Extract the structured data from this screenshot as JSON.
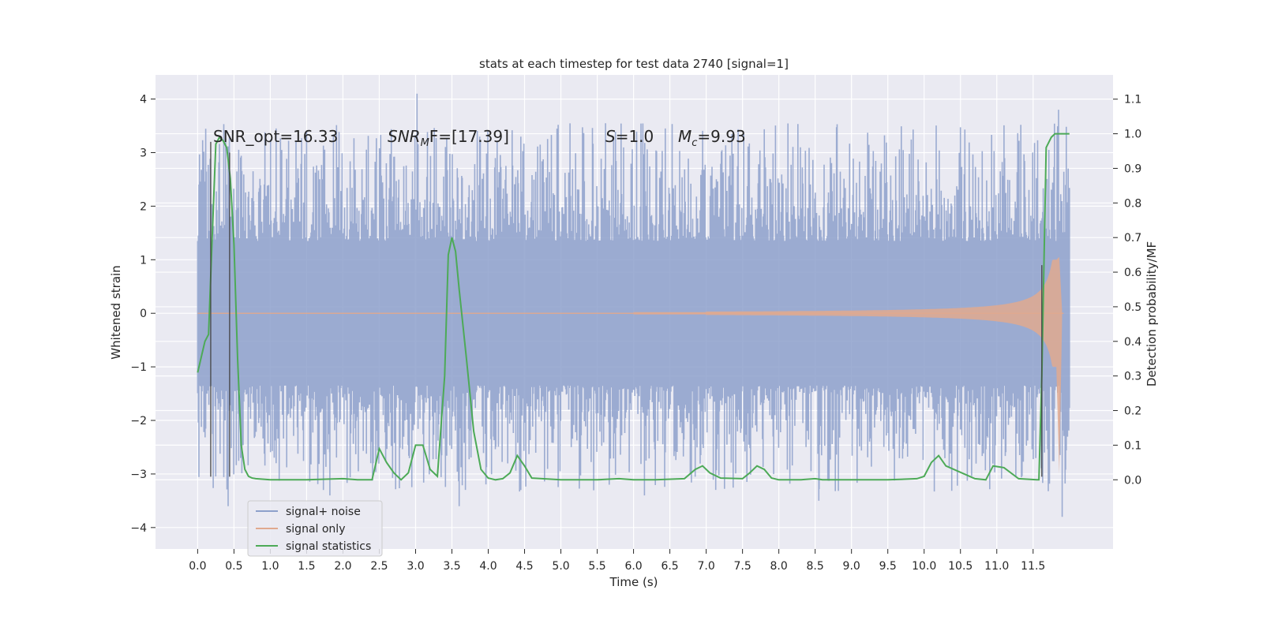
{
  "chart_data": {
    "type": "line",
    "title": "stats at each timestep for test data 2740 [signal=1]",
    "xlabel": "Time (s)",
    "ylabel": "Whitened strain",
    "ylabel_right": "Detection probability/MF",
    "xlim": [
      -0.58,
      12.6
    ],
    "ylim": [
      -4.4,
      4.45
    ],
    "ylim_right": [
      -0.2,
      1.17
    ],
    "x_ticks": [
      0.0,
      0.5,
      1.0,
      1.5,
      2.0,
      2.5,
      3.0,
      3.5,
      4.0,
      4.5,
      5.0,
      5.5,
      6.0,
      6.5,
      7.0,
      7.5,
      8.0,
      8.5,
      9.0,
      9.5,
      10.0,
      10.5,
      11.0,
      11.5
    ],
    "x_tick_labels": [
      "0.0",
      "0.5",
      "1.0",
      "1.5",
      "2.0",
      "2.5",
      "3.0",
      "3.5",
      "4.0",
      "4.5",
      "5.0",
      "5.5",
      "6.0",
      "6.5",
      "7.0",
      "7.5",
      "8.0",
      "8.5",
      "9.0",
      "9.5",
      "10.0",
      "10.5",
      "11.0",
      "11.5"
    ],
    "y_ticks": [
      -4,
      -3,
      -2,
      -1,
      0,
      1,
      2,
      3,
      4
    ],
    "y_tick_labels": [
      "−4",
      "−3",
      "−2",
      "−1",
      "0",
      "1",
      "2",
      "3",
      "4"
    ],
    "y_ticks_right": [
      0.0,
      0.1,
      0.2,
      0.3,
      0.4,
      0.5,
      0.6,
      0.7,
      0.8,
      0.9,
      1.0,
      1.1
    ],
    "y_tick_labels_right": [
      "0.0",
      "0.1",
      "0.2",
      "0.3",
      "0.4",
      "0.5",
      "0.6",
      "0.7",
      "0.8",
      "0.9",
      "1.0",
      "1.1"
    ],
    "grid": true,
    "legend_position": "lower-left",
    "annotations": {
      "snr_opt": "SNR_opt=16.33",
      "snr_mf_label": "SNR",
      "snr_mf_sub": "M",
      "snr_mf_rest": "F=[17.39]",
      "s_label": "S",
      "s_rest": "=1.0",
      "mc_label": "M",
      "mc_sub": "c",
      "mc_rest": "=9.93"
    },
    "series": [
      {
        "name": "signal+ noise",
        "color": "#8da0cb",
        "axis": "left",
        "t_range": [
          0.0,
          12.0
        ],
        "noise_envelope": {
          "core": 1.35,
          "max": 4.1,
          "min": -3.8
        },
        "peaks": [
          {
            "t": 3.02,
            "y": 4.1
          },
          {
            "t": 11.85,
            "y": 3.8
          },
          {
            "t": 11.9,
            "y": -3.8
          },
          {
            "t": 0.42,
            "y": -3.6
          },
          {
            "t": 3.6,
            "y": -3.6
          },
          {
            "t": 1.82,
            "y": -3.4
          },
          {
            "t": 6.15,
            "y": -3.4
          },
          {
            "t": 8.55,
            "y": -3.5
          }
        ]
      },
      {
        "name": "signal only",
        "color": "#e0a98f",
        "axis": "left",
        "chirp_start": 7.0,
        "chirp_end": 11.82,
        "amp_end": 1.0
      },
      {
        "name": "signal statistics",
        "color": "#4daa57",
        "axis": "right",
        "x": [
          0.0,
          0.1,
          0.15,
          0.2,
          0.25,
          0.3,
          0.35,
          0.4,
          0.45,
          0.5,
          0.55,
          0.6,
          0.65,
          0.7,
          0.75,
          0.8,
          1.0,
          1.5,
          2.0,
          2.2,
          2.4,
          2.5,
          2.6,
          2.7,
          2.8,
          2.9,
          3.0,
          3.1,
          3.2,
          3.3,
          3.4,
          3.45,
          3.5,
          3.55,
          3.6,
          3.7,
          3.8,
          3.9,
          4.0,
          4.1,
          4.2,
          4.3,
          4.4,
          4.5,
          4.6,
          5.0,
          5.3,
          5.5,
          5.8,
          6.0,
          6.3,
          6.7,
          6.85,
          6.95,
          7.05,
          7.2,
          7.5,
          7.6,
          7.7,
          7.8,
          7.9,
          8.0,
          8.3,
          8.5,
          8.6,
          9.0,
          9.5,
          9.9,
          10.0,
          10.1,
          10.2,
          10.3,
          10.7,
          10.85,
          10.95,
          11.1,
          11.3,
          11.55,
          11.58,
          11.62,
          11.68,
          11.75,
          11.8,
          11.85,
          12.0
        ],
        "y": [
          0.31,
          0.4,
          0.42,
          0.7,
          0.97,
          0.99,
          0.98,
          0.96,
          0.87,
          0.68,
          0.35,
          0.1,
          0.03,
          0.01,
          0.005,
          0.003,
          0.0,
          0.0,
          0.003,
          0.0,
          0.0,
          0.09,
          0.05,
          0.02,
          0.0,
          0.02,
          0.1,
          0.1,
          0.03,
          0.01,
          0.3,
          0.65,
          0.7,
          0.66,
          0.55,
          0.35,
          0.14,
          0.03,
          0.005,
          0.0,
          0.003,
          0.02,
          0.07,
          0.04,
          0.005,
          0.0,
          0.0,
          0.0,
          0.003,
          0.0,
          0.0,
          0.003,
          0.03,
          0.04,
          0.02,
          0.005,
          0.003,
          0.02,
          0.04,
          0.03,
          0.005,
          0.0,
          0.0,
          0.003,
          0.0,
          0.0,
          0.0,
          0.003,
          0.01,
          0.05,
          0.07,
          0.04,
          0.003,
          0.0,
          0.04,
          0.035,
          0.003,
          0.0,
          0.0,
          0.3,
          0.96,
          0.99,
          1.0,
          1.0,
          1.0
        ]
      }
    ],
    "markers": [
      {
        "t": 0.18,
        "y_top": 3.2,
        "y_bottom": -3.05
      },
      {
        "t": 0.44,
        "y_top": 3.0,
        "y_bottom": -3.05
      },
      {
        "t": 11.62,
        "y_top": 0.9,
        "y_bottom": -3.05
      }
    ],
    "legend": [
      {
        "label": "signal+ noise",
        "color": "#8da0cb"
      },
      {
        "label": "signal only",
        "color": "#e0a98f"
      },
      {
        "label": "signal statistics",
        "color": "#4daa57"
      }
    ]
  }
}
